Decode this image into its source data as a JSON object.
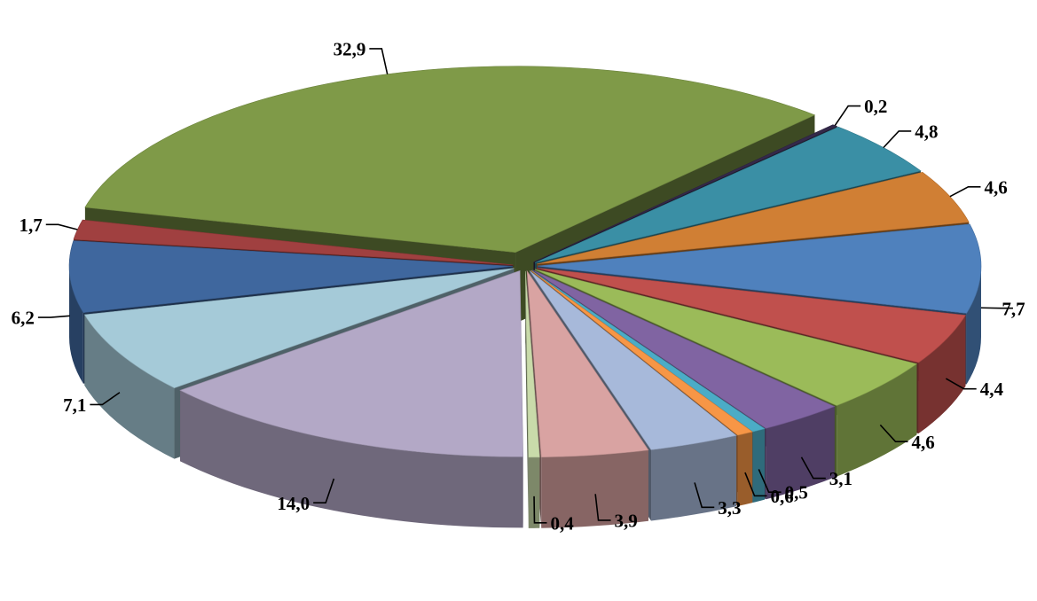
{
  "chart_data": {
    "type": "pie",
    "variant": "3d-exploded",
    "title": "",
    "legend": "none",
    "slices": [
      {
        "value": 7.7,
        "label": "7,7",
        "color": "#4F81BD"
      },
      {
        "value": 4.4,
        "label": "4,4",
        "color": "#C0504D"
      },
      {
        "value": 4.6,
        "label": "4,6",
        "color": "#9BBB59"
      },
      {
        "value": 3.1,
        "label": "3,1",
        "color": "#8064A2"
      },
      {
        "value": 0.5,
        "label": "0,5",
        "color": "#4BACC6"
      },
      {
        "value": 0.6,
        "label": "0,6",
        "color": "#F79646"
      },
      {
        "value": 3.3,
        "label": "3,3",
        "color": "#A7B9DA"
      },
      {
        "value": 3.9,
        "label": "3,9",
        "color": "#D9A3A2"
      },
      {
        "value": 0.4,
        "label": "0,4",
        "color": "#C9DBAA"
      },
      {
        "value": 14.0,
        "label": "14,0",
        "color": "#B3A8C6"
      },
      {
        "value": 7.1,
        "label": "7,1",
        "color": "#A5CAD8"
      },
      {
        "value": 6.2,
        "label": "6,2",
        "color": "#3F679E"
      },
      {
        "value": 1.7,
        "label": "1,7",
        "color": "#A04040"
      },
      {
        "value": 32.9,
        "label": "32,9",
        "color": "#7F9A48"
      },
      {
        "value": 0.2,
        "label": "0,2",
        "color": "#34294A"
      },
      {
        "value": 4.8,
        "label": "4,8",
        "color": "#3A8FA5"
      },
      {
        "value": 4.6,
        "label": "4,6",
        "color": "#D07F34"
      }
    ]
  }
}
